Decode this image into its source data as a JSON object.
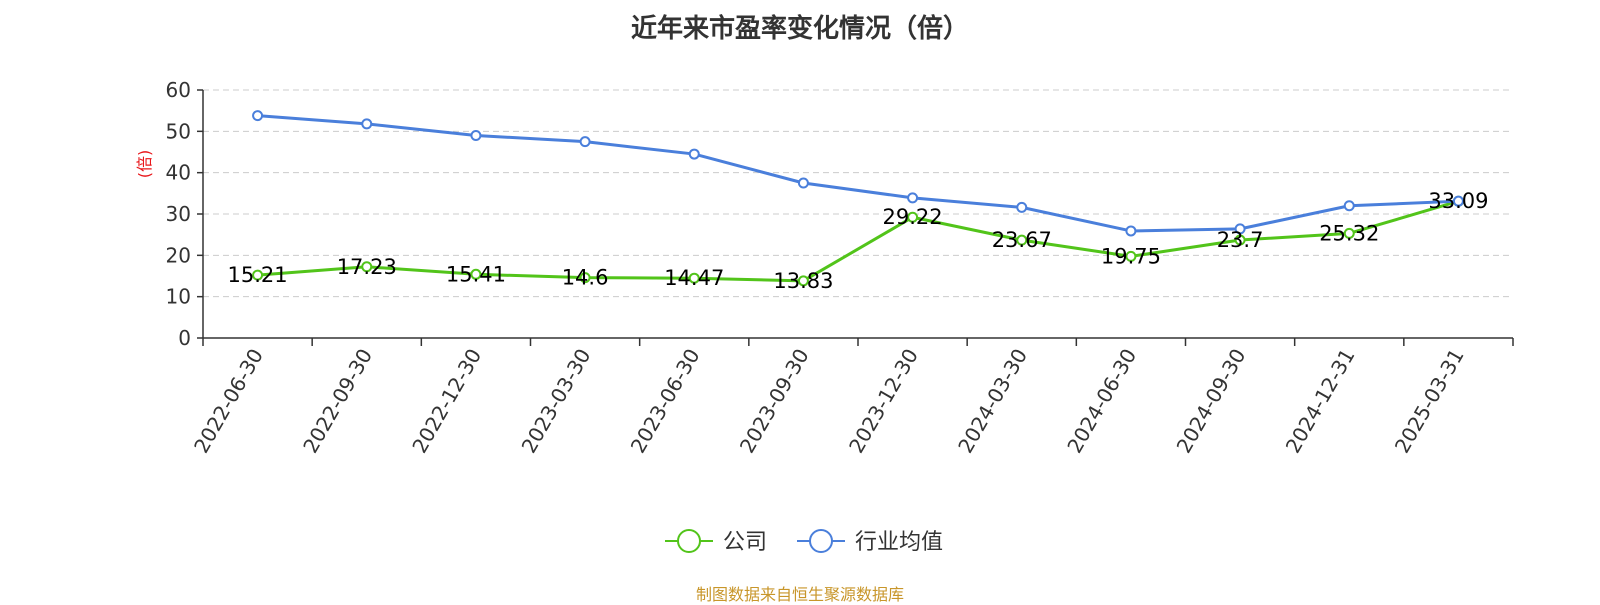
{
  "title": "近年来市盈率变化情况（倍）",
  "source_note": "制图数据来自恒生聚源数据库",
  "colors": {
    "company": "#52c41a",
    "industry": "#4a7fdb",
    "ylabel": "#e8161a",
    "source": "#c8962a"
  },
  "chart_data": {
    "type": "line",
    "title": "近年来市盈率变化情况（倍）",
    "ylabel": "(倍)",
    "xlabel": "",
    "ylim": [
      0,
      60
    ],
    "yticks": [
      0,
      10,
      20,
      30,
      40,
      50,
      60
    ],
    "grid": true,
    "legend_position": "bottom",
    "categories": [
      "2022-06-30",
      "2022-09-30",
      "2022-12-30",
      "2023-03-30",
      "2023-06-30",
      "2023-09-30",
      "2023-12-30",
      "2024-03-30",
      "2024-06-30",
      "2024-09-30",
      "2024-12-31",
      "2025-03-31"
    ],
    "series": [
      {
        "name": "公司",
        "color": "#52c41a",
        "show_labels": true,
        "values": [
          15.21,
          17.23,
          15.41,
          14.6,
          14.47,
          13.83,
          29.22,
          23.67,
          19.75,
          23.7,
          25.32,
          33.09
        ]
      },
      {
        "name": "行业均值",
        "color": "#4a7fdb",
        "show_labels": false,
        "values": [
          53.8,
          51.8,
          49.0,
          47.5,
          44.5,
          37.5,
          33.9,
          31.6,
          25.9,
          26.4,
          32.0,
          33.1
        ]
      }
    ]
  }
}
